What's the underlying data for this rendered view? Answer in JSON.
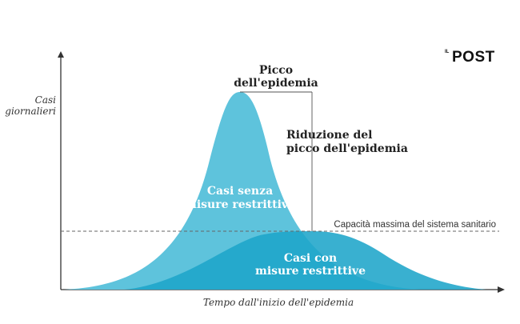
{
  "brand": {
    "prefix": "IL",
    "name": "POST"
  },
  "axes": {
    "y_label_line1": "Casi",
    "y_label_line2": "giornalieri",
    "x_label": "Tempo dall'inizio dell'epidemia"
  },
  "annotations": {
    "peak_line1": "Picco",
    "peak_line2": "dell'epidemia",
    "reduction_line1": "Riduzione del",
    "reduction_line2": "picco dell'epidemia",
    "capacity": "Capacità massima del sistema sanitario"
  },
  "curves": {
    "no_measures_line1": "Casi senza",
    "no_measures_line2": "misure restrittive",
    "with_measures_line1": "Casi con",
    "with_measures_line2": "misure restrittive"
  },
  "colors": {
    "no_measures": "#5ec3dc",
    "with_measures": "#1ea5c9",
    "overlap": "#2aa7c8",
    "axis": "#333333",
    "text": "#222222"
  }
}
